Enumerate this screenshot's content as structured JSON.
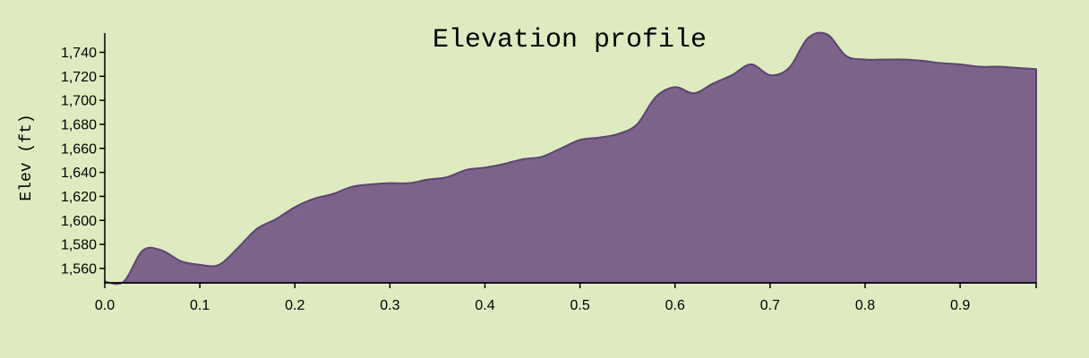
{
  "chart_data": {
    "type": "area",
    "title": "Elevation profile",
    "xlabel": "",
    "ylabel": "Elev (ft)",
    "xlim": [
      0,
      0.98
    ],
    "ylim": [
      1548,
      1756
    ],
    "grid": false,
    "x_ticks": [
      0.0,
      0.1,
      0.2,
      0.3,
      0.4,
      0.5,
      0.6,
      0.7,
      0.8,
      0.9
    ],
    "x_tick_labels": [
      "0.0",
      "0.1",
      "0.2",
      "0.3",
      "0.4",
      "0.5",
      "0.6",
      "0.7",
      "0.8",
      "0.9"
    ],
    "y_ticks": [
      1560,
      1580,
      1600,
      1620,
      1640,
      1660,
      1680,
      1700,
      1720,
      1740
    ],
    "y_tick_labels": [
      "1,560",
      "1,580",
      "1,600",
      "1,620",
      "1,640",
      "1,660",
      "1,680",
      "1,700",
      "1,720",
      "1,740"
    ],
    "series": [
      {
        "color": "#7b6389",
        "line_color": "#5e4470",
        "points": [
          [
            0.0,
            1549
          ],
          [
            0.02,
            1549
          ],
          [
            0.04,
            1575
          ],
          [
            0.06,
            1575
          ],
          [
            0.08,
            1566
          ],
          [
            0.1,
            1563
          ],
          [
            0.12,
            1563
          ],
          [
            0.14,
            1577
          ],
          [
            0.16,
            1593
          ],
          [
            0.18,
            1601
          ],
          [
            0.2,
            1611
          ],
          [
            0.22,
            1618
          ],
          [
            0.24,
            1622
          ],
          [
            0.26,
            1628
          ],
          [
            0.28,
            1630
          ],
          [
            0.3,
            1631
          ],
          [
            0.32,
            1631
          ],
          [
            0.34,
            1634
          ],
          [
            0.36,
            1636
          ],
          [
            0.38,
            1642
          ],
          [
            0.4,
            1644
          ],
          [
            0.42,
            1647
          ],
          [
            0.44,
            1651
          ],
          [
            0.46,
            1653
          ],
          [
            0.48,
            1660
          ],
          [
            0.5,
            1667
          ],
          [
            0.52,
            1669
          ],
          [
            0.54,
            1672
          ],
          [
            0.56,
            1680
          ],
          [
            0.58,
            1703
          ],
          [
            0.6,
            1711
          ],
          [
            0.62,
            1706
          ],
          [
            0.64,
            1714
          ],
          [
            0.66,
            1721
          ],
          [
            0.68,
            1730
          ],
          [
            0.7,
            1721
          ],
          [
            0.72,
            1727
          ],
          [
            0.74,
            1752
          ],
          [
            0.76,
            1755
          ],
          [
            0.78,
            1737
          ],
          [
            0.8,
            1734
          ],
          [
            0.82,
            1734
          ],
          [
            0.84,
            1734
          ],
          [
            0.86,
            1733
          ],
          [
            0.88,
            1731
          ],
          [
            0.9,
            1730
          ],
          [
            0.92,
            1728
          ],
          [
            0.94,
            1728
          ],
          [
            0.96,
            1727
          ],
          [
            0.98,
            1726
          ]
        ]
      }
    ]
  }
}
